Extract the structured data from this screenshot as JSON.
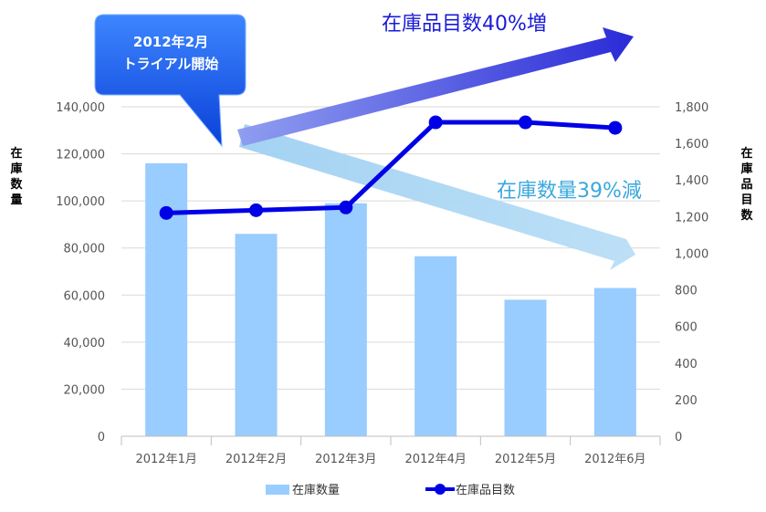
{
  "chart_data": {
    "type": "bar",
    "categories": [
      "2012年1月",
      "2012年2月",
      "2012年3月",
      "2012年4月",
      "2012年5月",
      "2012年6月"
    ],
    "series": [
      {
        "name": "在庫数量",
        "type": "bar",
        "axis": "left",
        "color": "#99CCFF",
        "values": [
          116000,
          86000,
          99000,
          76500,
          58000,
          63000
        ]
      },
      {
        "name": "在庫品目数",
        "type": "line",
        "axis": "right",
        "color": "#0000E6",
        "values": [
          1220,
          1235,
          1250,
          1715,
          1715,
          1685
        ]
      }
    ],
    "ylabel": "在庫数量",
    "ylabel_right": "在庫品目数",
    "ylim": [
      0,
      140000
    ],
    "ylim_right": [
      0,
      1800
    ],
    "yticks": [
      "0",
      "20,000",
      "40,000",
      "60,000",
      "80,000",
      "100,000",
      "120,000",
      "140,000"
    ],
    "yticks_right": [
      "0",
      "200",
      "400",
      "600",
      "800",
      "1,000",
      "1,200",
      "1,400",
      "1,600",
      "1,800"
    ],
    "grid": true,
    "legend": "bottom",
    "annotations": {
      "callout_line1": "2012年2月",
      "callout_line2": "トライアル開始",
      "increase": "在庫品目数40%増",
      "decrease": "在庫数量39%減"
    }
  }
}
